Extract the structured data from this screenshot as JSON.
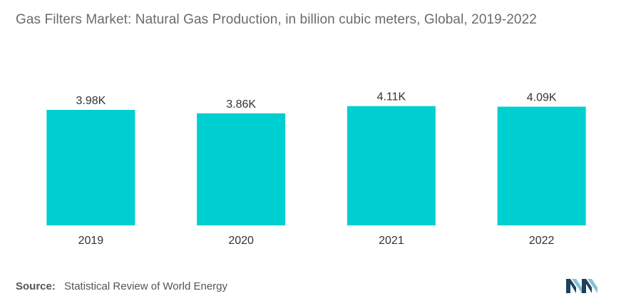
{
  "title": "Gas Filters Market: Natural Gas Production, in billion cubic meters, Global, 2019-2022",
  "source": {
    "label": "Source:",
    "text": "Statistical Review of World Energy"
  },
  "colors": {
    "bar": "#00CFD1",
    "text": "#555555",
    "axis": "#d9d9d9",
    "logo_dark": "#1f3f5b",
    "logo_light": "#7fc4d8"
  },
  "chart_data": {
    "type": "bar",
    "categories": [
      "2019",
      "2020",
      "2021",
      "2022"
    ],
    "values": [
      3980,
      3860,
      4110,
      4090
    ],
    "labels": [
      "3.98K",
      "3.86K",
      "4.11K",
      "4.09K"
    ],
    "title": "Gas Filters Market: Natural Gas Production, in billion cubic meters, Global, 2019-2022",
    "xlabel": "",
    "ylabel": "",
    "ylim": [
      0,
      4300
    ],
    "grid": false,
    "legend": "none"
  }
}
